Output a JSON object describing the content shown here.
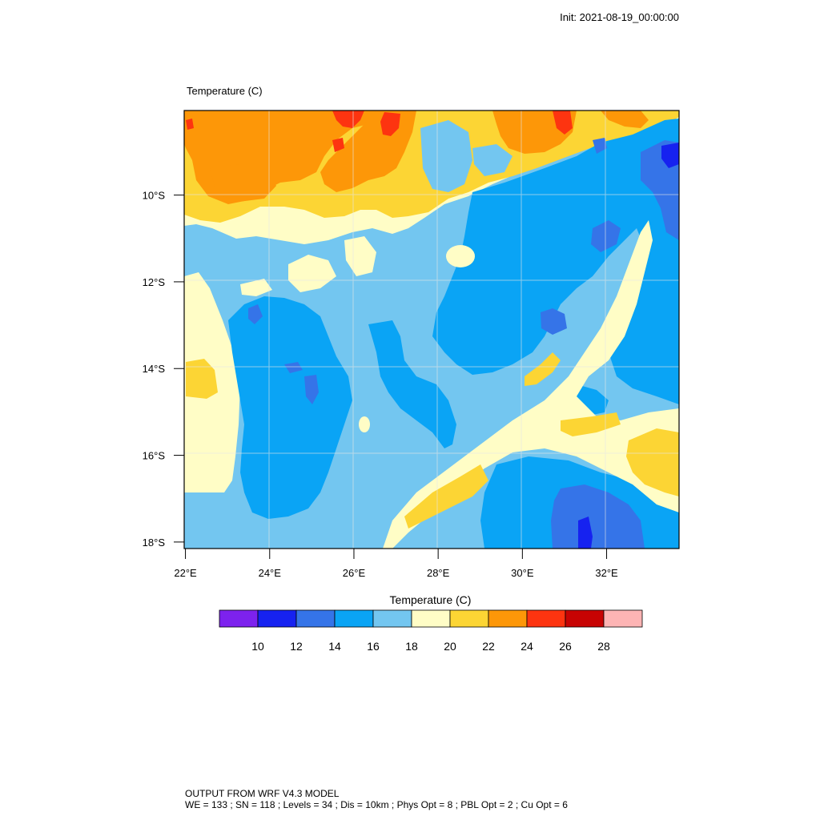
{
  "header": {
    "init_time": "Init: 2021-08-19_00:00:00",
    "plot_title": "Temperature   (C)"
  },
  "map": {
    "lon_ticks": [
      "22°E",
      "24°E",
      "26°E",
      "28°E",
      "30°E",
      "32°E"
    ],
    "lat_ticks": [
      "10°S",
      "12°S",
      "14°S",
      "16°S",
      "18°S"
    ],
    "lon_values": [
      22,
      24,
      26,
      28,
      30,
      32
    ],
    "lat_values": [
      -10,
      -12,
      -14,
      -16,
      -18
    ],
    "lon_range": [
      21.97,
      33.72
    ],
    "lat_range": [
      -18.15,
      -8.05
    ]
  },
  "colorbar": {
    "title": "Temperature  (C)",
    "labels": [
      "10",
      "12",
      "14",
      "16",
      "18",
      "20",
      "22",
      "24",
      "26",
      "28"
    ],
    "colors": [
      "#7d22ee",
      "#1622f0",
      "#3574e8",
      "#0aa4f5",
      "#73c6f0",
      "#fffdc6",
      "#fcd534",
      "#fd9708",
      "#fd3410",
      "#c70303",
      "#fdb4b4"
    ]
  },
  "footer": {
    "line1": "OUTPUT FROM WRF V4.3 MODEL",
    "line2": "WE = 133 ; SN = 118 ; Levels = 34 ; Dis = 10km ; Phys Opt = 8 ; PBL Opt = 2 ; Cu Opt = 6"
  }
}
